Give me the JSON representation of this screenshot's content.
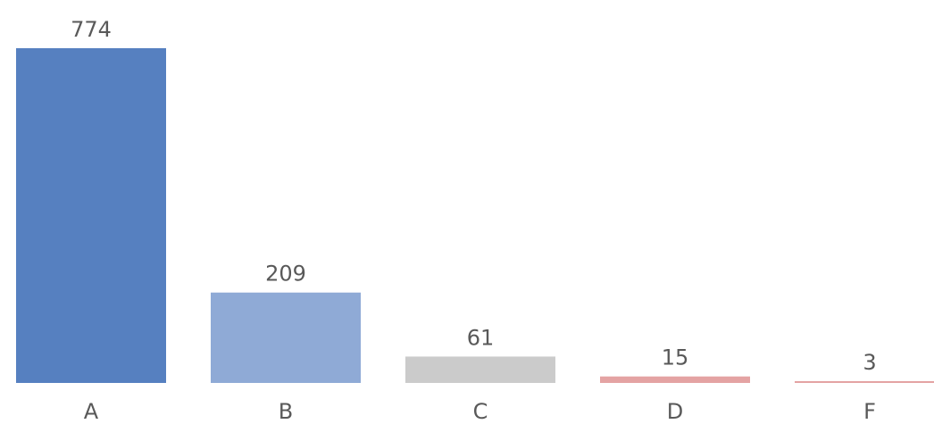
{
  "chart_data": {
    "type": "bar",
    "categories": [
      "A",
      "B",
      "C",
      "D",
      "F"
    ],
    "values": [
      774,
      209,
      61,
      15,
      3
    ],
    "colors": [
      "#5680c0",
      "#8faad6",
      "#cbcbcb",
      "#e4a3a3",
      "#e4a3a3"
    ],
    "ylim": [
      0,
      774
    ],
    "grid": false,
    "legend": "none",
    "title": "",
    "xlabel": "",
    "ylabel": "",
    "data_labels": true
  }
}
